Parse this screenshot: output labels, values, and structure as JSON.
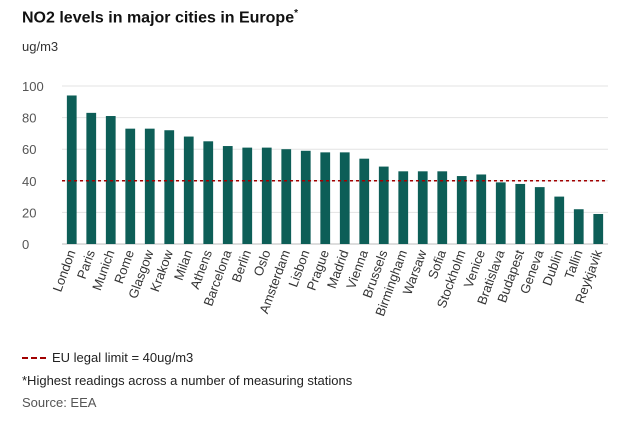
{
  "chart_data": {
    "type": "bar",
    "title": "NO2 levels in major cities in Europe",
    "title_marker": "*",
    "ylabel": "ug/m3",
    "xlabel": "",
    "ylim": [
      0,
      100
    ],
    "yticks": [
      0,
      20,
      40,
      60,
      80,
      100
    ],
    "grid": true,
    "bar_color": "#0d5e57",
    "limit_line": {
      "value": 40,
      "color": "#a10000",
      "label": "EU legal limit = 40ug/m3"
    },
    "categories": [
      "London",
      "Paris",
      "Munich",
      "Rome",
      "Glasgow",
      "Krakow",
      "Milan",
      "Athens",
      "Barcelona",
      "Berlin",
      "Oslo",
      "Amsterdam",
      "Lisbon",
      "Prague",
      "Madrid",
      "Vienna",
      "Brussels",
      "Birmingham",
      "Warsaw",
      "Sofia",
      "Stockholm",
      "Venice",
      "Bratislava",
      "Budapest",
      "Geneva",
      "Dublin",
      "Tallin",
      "Reykjavik"
    ],
    "values": [
      94,
      83,
      81,
      73,
      73,
      72,
      68,
      65,
      62,
      61,
      61,
      60,
      59,
      58,
      58,
      54,
      49,
      46,
      46,
      46,
      43,
      44,
      39,
      38,
      36,
      30,
      22,
      19
    ]
  },
  "footer": {
    "note": "*Highest readings across a number of measuring stations",
    "source": "Source: EEA"
  }
}
